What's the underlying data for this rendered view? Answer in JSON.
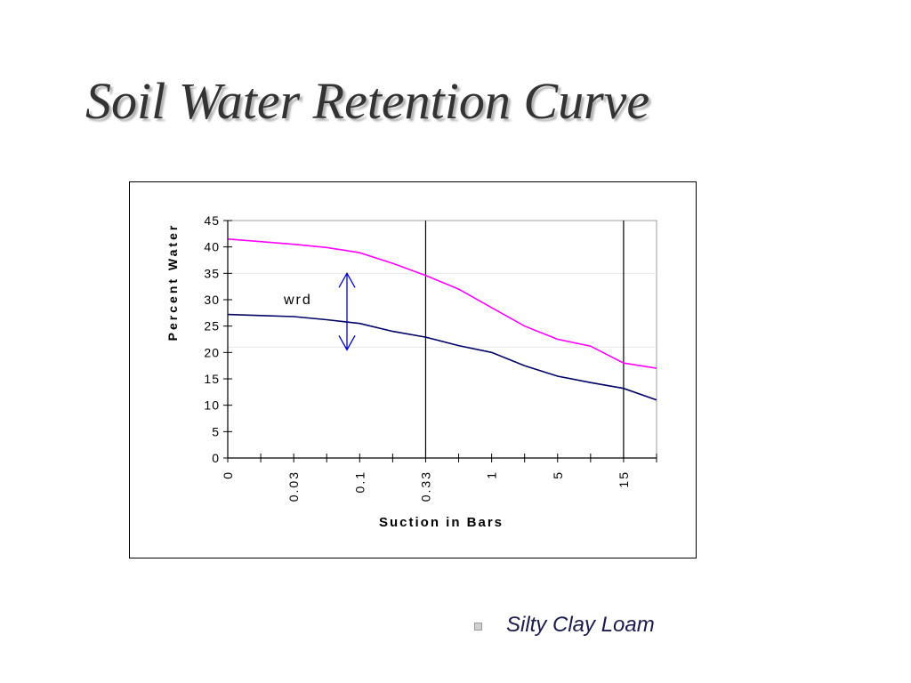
{
  "slide": {
    "title": "Soil Water Retention Curve",
    "caption": "Silty Clay Loam"
  },
  "colors": {
    "upper_curve": "#ff00ff",
    "lower_curve": "#000066",
    "wrd_arrow": "#0000cc"
  },
  "chart_data": {
    "type": "line",
    "title": "",
    "xlabel": "Suction in Bars",
    "ylabel": "Percent Water",
    "ylim": [
      0,
      45
    ],
    "yticks": [
      "0",
      "5",
      "10",
      "15",
      "20",
      "25",
      "30",
      "35",
      "40",
      "45"
    ],
    "xtick_labels": [
      {
        "label": "0",
        "x": 0
      },
      {
        "label": "0.03",
        "x": 0.03
      },
      {
        "label": "0.1",
        "x": 0.1
      },
      {
        "label": "0.33",
        "x": 0.33
      },
      {
        "label": "1",
        "x": 1
      },
      {
        "label": "5",
        "x": 5
      },
      {
        "label": "15",
        "x": 15
      }
    ],
    "x_scale": "categorical",
    "x_categories_count": 13,
    "reference_lines_x": [
      0.33,
      15
    ],
    "series": [
      {
        "color": "#ff00ff",
        "x": [
          0,
          0.03,
          0.1,
          0.33,
          1,
          5,
          15
        ],
        "values": [
          41.5,
          40.5,
          38.5,
          35,
          28.5,
          22,
          17
        ],
        "points": [
          [
            0,
            41.5
          ],
          [
            1,
            41.0
          ],
          [
            2,
            40.5
          ],
          [
            3,
            39.9
          ],
          [
            4,
            38.9
          ],
          [
            5,
            36.9
          ],
          [
            6,
            34.6
          ],
          [
            7,
            32.0
          ],
          [
            8,
            28.5
          ],
          [
            9,
            25.0
          ],
          [
            10,
            22.5
          ],
          [
            11,
            21.2
          ],
          [
            12,
            18.0
          ],
          [
            13,
            17.0
          ]
        ]
      },
      {
        "color": "#000066",
        "x": [
          0,
          0.03,
          0.1,
          0.33,
          1,
          5,
          15
        ],
        "values": [
          27.2,
          26.8,
          25.5,
          23,
          20,
          15.5,
          11
        ],
        "points": [
          [
            0,
            27.2
          ],
          [
            1,
            27.0
          ],
          [
            2,
            26.8
          ],
          [
            3,
            26.2
          ],
          [
            4,
            25.5
          ],
          [
            5,
            24.0
          ],
          [
            6,
            22.9
          ],
          [
            7,
            21.3
          ],
          [
            8,
            20.0
          ],
          [
            9,
            17.5
          ],
          [
            10,
            15.5
          ],
          [
            11,
            14.3
          ],
          [
            12,
            13.2
          ],
          [
            13,
            11.0
          ]
        ]
      }
    ],
    "annotation": {
      "text": "wrd",
      "arrow_from_y": 35,
      "arrow_to_y": 20.5
    },
    "grid": false,
    "legend": "none"
  }
}
